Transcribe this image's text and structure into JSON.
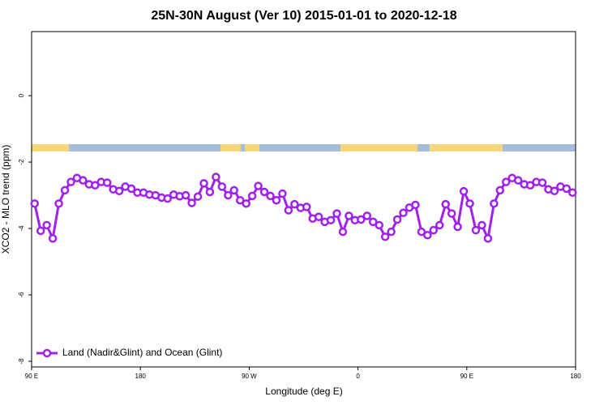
{
  "chart_data": {
    "type": "line",
    "title": "25N-30N August (Ver 10)   2015-01-01 to 2020-12-18",
    "xlabel": "Longitude (deg E)",
    "ylabel": "XCO2 - MLO trend (ppm)",
    "x": [
      92.5,
      97.5,
      102.5,
      107.5,
      112.5,
      117.5,
      122.5,
      127.5,
      132.5,
      137.5,
      142.5,
      147.5,
      152.5,
      157.5,
      162.5,
      167.5,
      172.5,
      177.5,
      182.5,
      187.5,
      192.5,
      197.5,
      202.5,
      207.5,
      212.5,
      217.5,
      222.5,
      227.5,
      232.5,
      237.5,
      242.5,
      247.5,
      252.5,
      257.5,
      262.5,
      267.5,
      272.5,
      277.5,
      282.5,
      287.5,
      292.5,
      297.5,
      302.5,
      307.5,
      312.5,
      317.5,
      322.5,
      327.5,
      332.5,
      337.5,
      342.5,
      347.5,
      352.5,
      357.5,
      362.5,
      367.5,
      372.5,
      377.5,
      382.5,
      387.5,
      392.5,
      397.5,
      402.5,
      407.5,
      412.5,
      417.5,
      422.5,
      427.5,
      432.5,
      437.5,
      442.5,
      447.5,
      452.5,
      457.5,
      462.5,
      467.5,
      472.5,
      477.5,
      482.5,
      487.5,
      492.5,
      497.5,
      502.5,
      507.5,
      512.5,
      517.5,
      522.5,
      527.5,
      532.5,
      537.5
    ],
    "series": [
      {
        "name": "Land (Nadir&Glint) and Ocean (Glint)",
        "color": "#a020f0",
        "values": [
          -3.25,
          -4.07,
          -3.9,
          -4.3,
          -3.25,
          -2.85,
          -2.6,
          -2.48,
          -2.55,
          -2.67,
          -2.7,
          -2.6,
          -2.62,
          -2.82,
          -2.87,
          -2.74,
          -2.8,
          -2.92,
          -2.92,
          -2.98,
          -3.0,
          -3.07,
          -3.1,
          -2.98,
          -3.03,
          -3.0,
          -3.23,
          -3.04,
          -2.64,
          -2.9,
          -2.45,
          -2.74,
          -3.0,
          -2.85,
          -3.15,
          -3.25,
          -3.02,
          -2.72,
          -2.9,
          -3.02,
          -3.15,
          -2.95,
          -3.45,
          -3.27,
          -3.38,
          -3.35,
          -3.7,
          -3.65,
          -3.8,
          -3.75,
          -3.55,
          -4.1,
          -3.62,
          -3.75,
          -3.73,
          -3.62,
          -3.8,
          -3.9,
          -4.25,
          -4.1,
          -3.73,
          -3.53,
          -3.37,
          -3.29,
          -4.1,
          -4.2,
          -4.05,
          -3.9,
          -3.27,
          -3.55,
          -3.95,
          -2.88,
          -3.25,
          -4.05,
          -3.9,
          -4.3,
          -3.25,
          -2.85,
          -2.6,
          -2.48,
          -2.55,
          -2.67,
          -2.7,
          -2.6,
          -2.62,
          -2.82,
          -2.87,
          -2.74,
          -2.8,
          -2.92
        ]
      }
    ],
    "xlim": [
      90,
      540
    ],
    "xticks": [
      {
        "value": 90,
        "label": "90 E"
      },
      180,
      {
        "value": 270,
        "label": "90 W"
      },
      {
        "value": 360,
        "label": "0"
      },
      {
        "value": 450,
        "label": "90 E"
      },
      {
        "value": 540,
        "label": "180"
      }
    ],
    "ylim": [
      -8.17,
      1.93
    ],
    "yticks": [
      0,
      -2,
      -4,
      -6,
      -8
    ],
    "legend": "bottom-left"
  }
}
